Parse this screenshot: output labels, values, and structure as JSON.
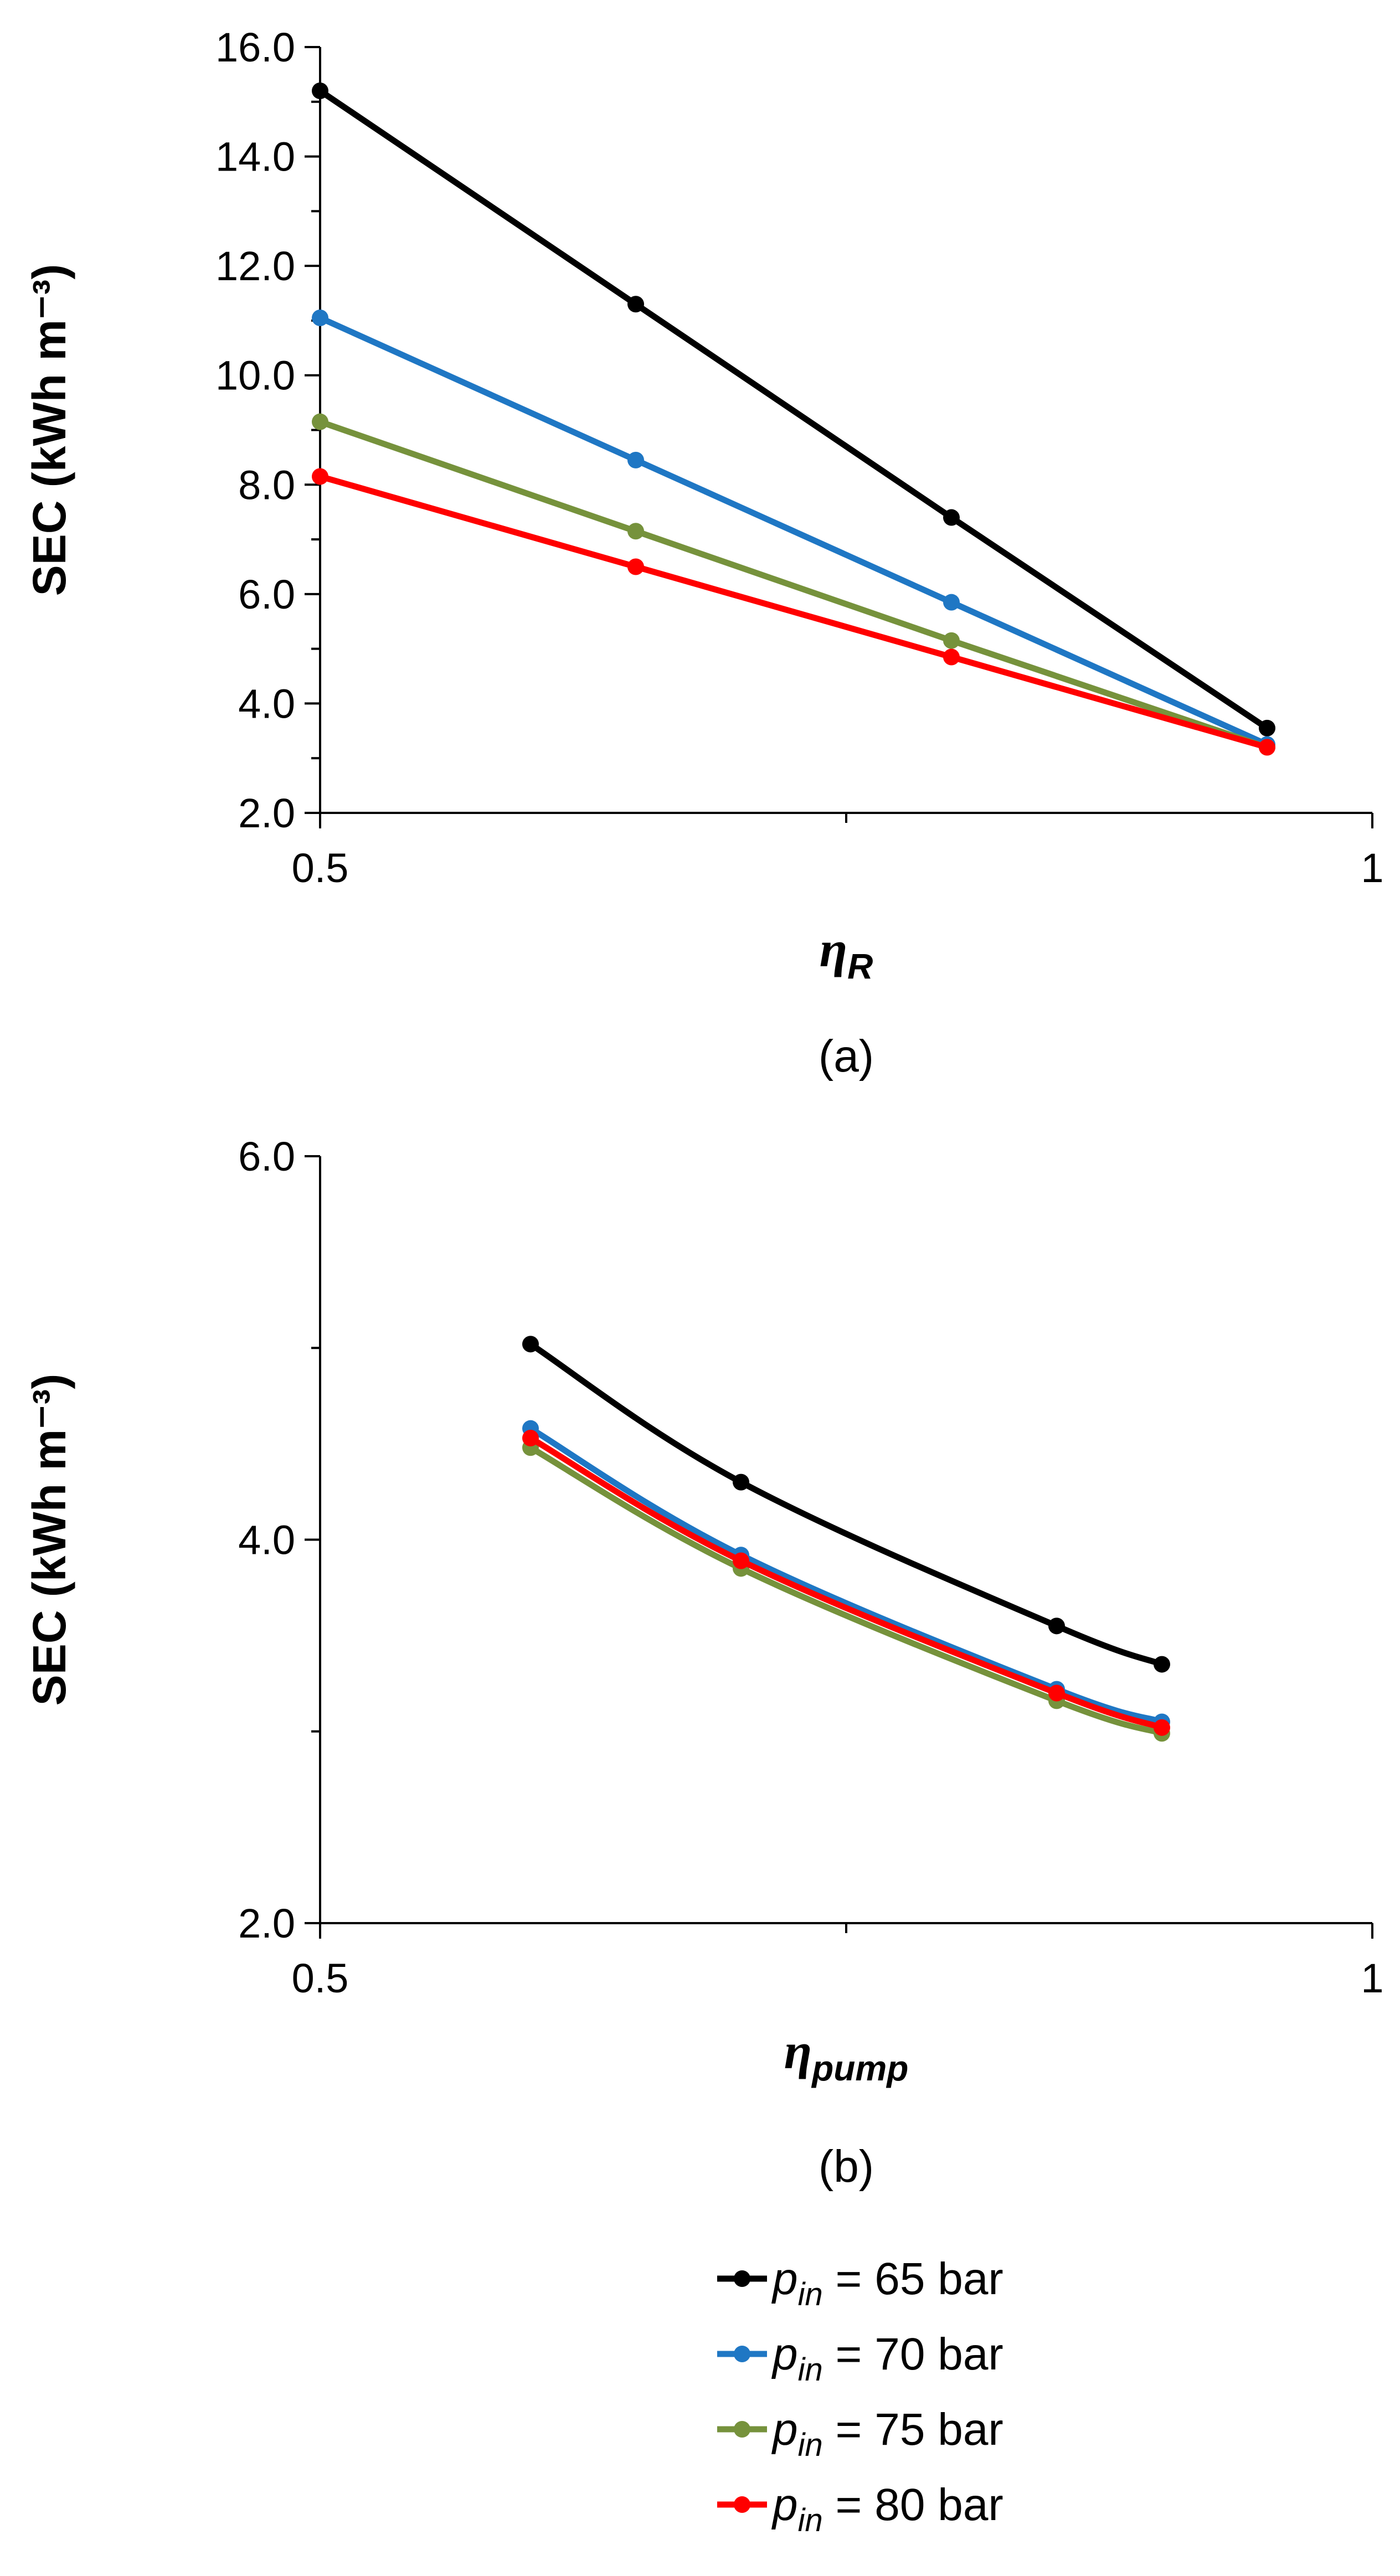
{
  "chart_data": [
    {
      "type": "line",
      "panel": "a",
      "caption": "(a)",
      "ylabel": "SEC (kWh m⁻³)",
      "xlabel_symbol": "η",
      "xlabel_sub": "R",
      "xlim": [
        0.5,
        1
      ],
      "ylim": [
        2.0,
        16.0
      ],
      "y_ticks": [
        "2.0",
        "4.0",
        "6.0",
        "8.0",
        "10.0",
        "12.0",
        "14.0",
        "16.0"
      ],
      "x_tick_labels": [
        "0.5",
        "1"
      ],
      "grid": false,
      "x": [
        0.5,
        0.65,
        0.8,
        0.95
      ],
      "series": [
        {
          "name": "p_in = 65 bar",
          "color": "#000000",
          "values": [
            15.2,
            11.3,
            7.4,
            3.55
          ]
        },
        {
          "name": "p_in = 70 bar",
          "color": "#1f77c4",
          "values": [
            11.05,
            8.45,
            5.85,
            3.25
          ]
        },
        {
          "name": "p_in = 75 bar",
          "color": "#76923c",
          "values": [
            9.15,
            7.15,
            5.15,
            3.2
          ]
        },
        {
          "name": "p_in = 80 bar",
          "color": "#ff0000",
          "values": [
            8.15,
            6.5,
            4.85,
            3.2
          ]
        }
      ]
    },
    {
      "type": "line",
      "panel": "b",
      "caption": "(b)",
      "ylabel": "SEC (kWh m⁻³)",
      "xlabel_symbol": "η",
      "xlabel_sub": "pump",
      "xlim": [
        0.5,
        1
      ],
      "ylim": [
        2.0,
        6.0
      ],
      "y_ticks": [
        "2.0",
        "4.0",
        "6.0"
      ],
      "x_tick_labels": [
        "0.5",
        "1"
      ],
      "grid": false,
      "x": [
        0.6,
        0.7,
        0.85,
        0.9
      ],
      "series": [
        {
          "name": "p_in = 65 bar",
          "color": "#000000",
          "values": [
            5.02,
            4.3,
            3.55,
            3.35
          ]
        },
        {
          "name": "p_in = 70 bar",
          "color": "#1f77c4",
          "values": [
            4.58,
            3.92,
            3.22,
            3.05
          ]
        },
        {
          "name": "p_in = 75 bar",
          "color": "#76923c",
          "values": [
            4.48,
            3.85,
            3.16,
            2.99
          ]
        },
        {
          "name": "p_in = 80 bar",
          "color": "#ff0000",
          "values": [
            4.53,
            3.89,
            3.2,
            3.02
          ]
        }
      ]
    }
  ],
  "legend": [
    {
      "symbol": "p",
      "sub": "in",
      "rest": " = 65 bar",
      "color": "#000000"
    },
    {
      "symbol": "p",
      "sub": "in",
      "rest": " = 70 bar",
      "color": "#1f77c4"
    },
    {
      "symbol": "p",
      "sub": "in",
      "rest": " = 75 bar",
      "color": "#76923c"
    },
    {
      "symbol": "p",
      "sub": "in",
      "rest": " = 80 bar",
      "color": "#ff0000"
    }
  ]
}
